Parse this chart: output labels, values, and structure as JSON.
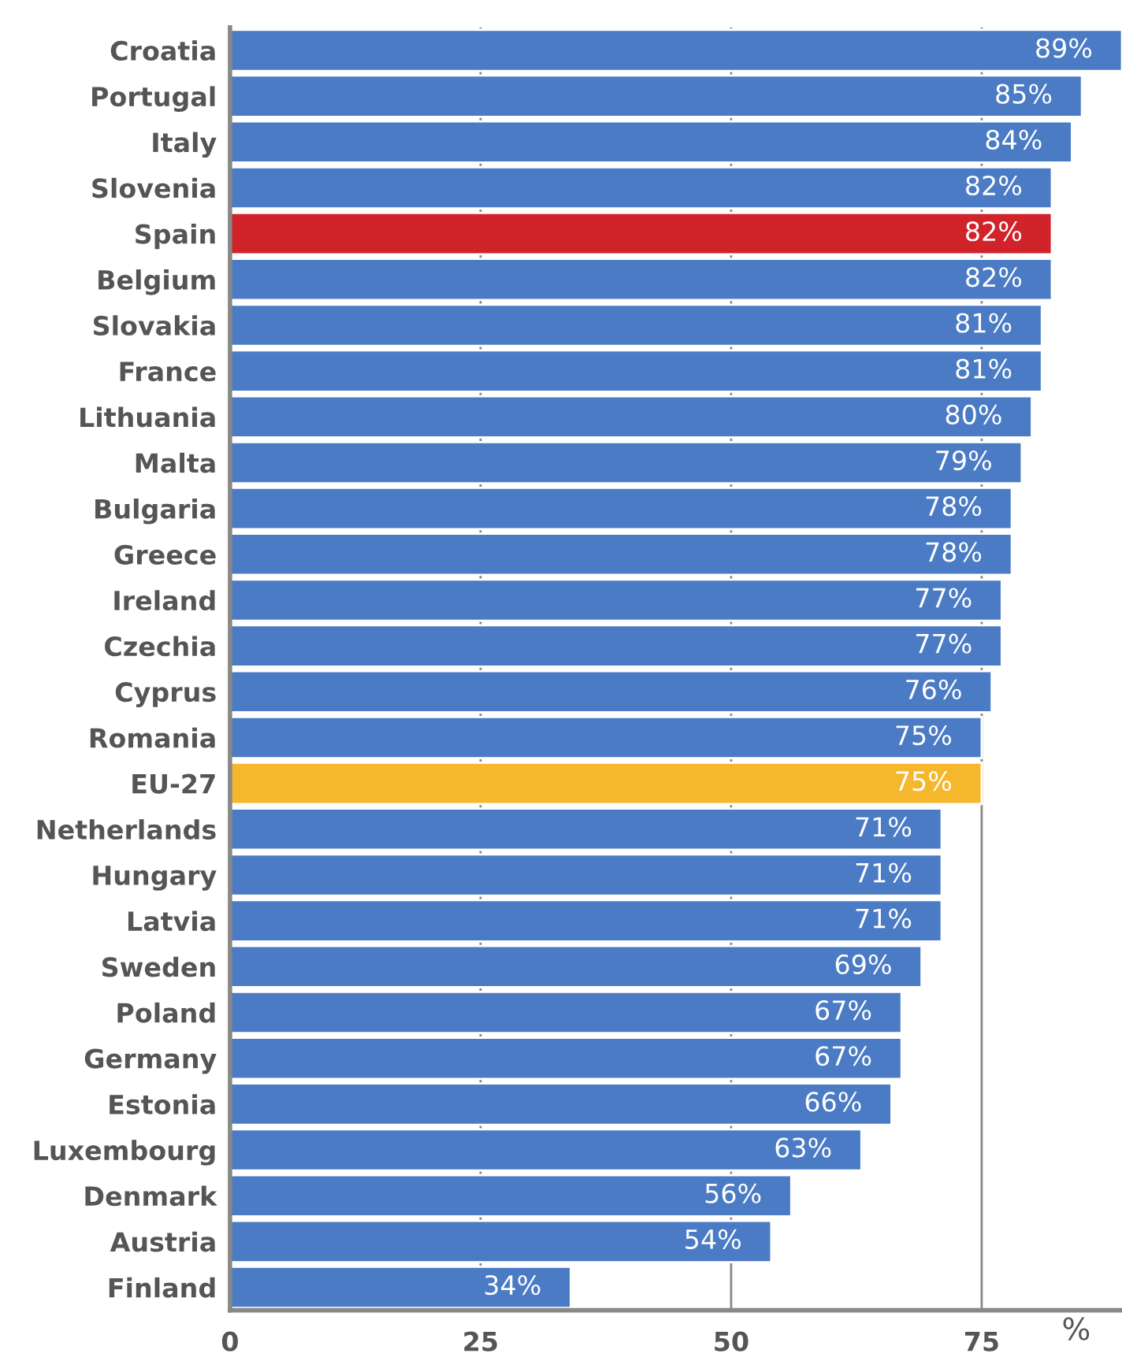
{
  "chart_data": {
    "type": "bar",
    "orientation": "horizontal",
    "xlabel": "%",
    "categories": [
      "Croatia",
      "Portugal",
      "Italy",
      "Slovenia",
      "Spain",
      "Belgium",
      "Slovakia",
      "France",
      "Lithuania",
      "Malta",
      "Bulgaria",
      "Greece",
      "Ireland",
      "Czechia",
      "Cyprus",
      "Romania",
      "EU-27",
      "Netherlands",
      "Hungary",
      "Latvia",
      "Sweden",
      "Poland",
      "Germany",
      "Estonia",
      "Luxembourg",
      "Denmark",
      "Austria",
      "Finland"
    ],
    "values": [
      89,
      85,
      84,
      82,
      82,
      82,
      81,
      81,
      80,
      79,
      78,
      78,
      77,
      77,
      76,
      75,
      75,
      71,
      71,
      71,
      69,
      67,
      67,
      66,
      63,
      56,
      54,
      34
    ],
    "value_labels": [
      "89%",
      "85%",
      "84%",
      "82%",
      "82%",
      "82%",
      "81%",
      "81%",
      "80%",
      "79%",
      "78%",
      "78%",
      "77%",
      "77%",
      "76%",
      "75%",
      "75%",
      "71%",
      "71%",
      "71%",
      "69%",
      "67%",
      "67%",
      "66%",
      "63%",
      "56%",
      "54%",
      "34%"
    ],
    "colors": [
      "#4a7bc4",
      "#4a7bc4",
      "#4a7bc4",
      "#4a7bc4",
      "#d0232a",
      "#4a7bc4",
      "#4a7bc4",
      "#4a7bc4",
      "#4a7bc4",
      "#4a7bc4",
      "#4a7bc4",
      "#4a7bc4",
      "#4a7bc4",
      "#4a7bc4",
      "#4a7bc4",
      "#4a7bc4",
      "#f5b72b",
      "#4a7bc4",
      "#4a7bc4",
      "#4a7bc4",
      "#4a7bc4",
      "#4a7bc4",
      "#4a7bc4",
      "#4a7bc4",
      "#4a7bc4",
      "#4a7bc4",
      "#4a7bc4",
      "#4a7bc4"
    ],
    "xlim": [
      0,
      89
    ],
    "xticks": [
      0,
      25,
      50,
      75
    ],
    "grid": "x"
  }
}
